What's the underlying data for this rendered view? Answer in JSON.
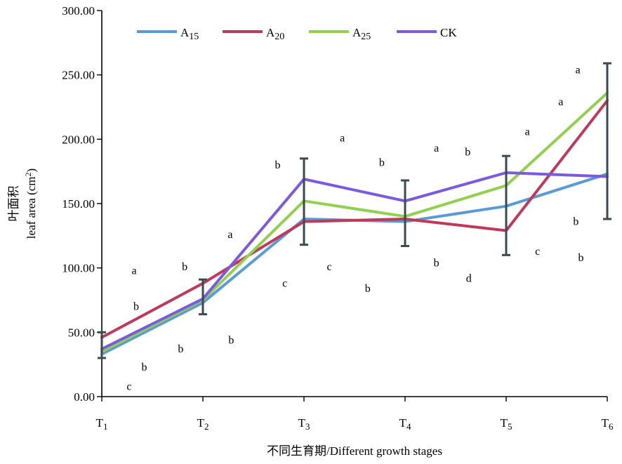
{
  "chart_data": {
    "type": "line",
    "xlabel": "不同生育期/Different growth stages",
    "ylabel_cn": "叶面积",
    "ylabel_en": "leaf area (cm",
    "ylabel_sup": "2",
    "ylabel_close": ")",
    "ylim": [
      0,
      300
    ],
    "yticks": [
      "0.00",
      "50.00",
      "100.00",
      "150.00",
      "200.00",
      "250.00",
      "300.00"
    ],
    "categories": [
      {
        "main": "T",
        "sub": "1"
      },
      {
        "main": "T",
        "sub": "2"
      },
      {
        "main": "T",
        "sub": "3"
      },
      {
        "main": "T",
        "sub": "4"
      },
      {
        "main": "T",
        "sub": "5"
      },
      {
        "main": "T",
        "sub": "6"
      }
    ],
    "legend_position": "top",
    "series": [
      {
        "name": "A",
        "name_sub": "15",
        "color": "#5b9bd5",
        "values": [
          33,
          73,
          138,
          136,
          148,
          173
        ]
      },
      {
        "name": "A",
        "name_sub": "20",
        "color": "#c0395a",
        "values": [
          46,
          88,
          136,
          138,
          129,
          230
        ]
      },
      {
        "name": "A",
        "name_sub": "25",
        "color": "#92d050",
        "values": [
          35,
          75,
          152,
          140,
          164,
          236
        ]
      },
      {
        "name": "CK",
        "name_sub": "",
        "color": "#7b5ae0",
        "values": [
          37,
          76,
          169,
          152,
          174,
          171
        ]
      }
    ],
    "error_bars": [
      {
        "category": 0,
        "low": 30,
        "high": 50
      },
      {
        "category": 1,
        "low": 64,
        "high": 91
      },
      {
        "category": 2,
        "low": 118,
        "high": 185
      },
      {
        "category": 3,
        "low": 117,
        "high": 168
      },
      {
        "category": 4,
        "low": 110,
        "high": 187
      },
      {
        "category": 5,
        "low": 138,
        "high": 259
      }
    ],
    "annotations": [
      {
        "text": "a",
        "x": 0.32,
        "y": 98
      },
      {
        "text": "b",
        "x": 0.34,
        "y": 70
      },
      {
        "text": "b",
        "x": 0.42,
        "y": 23
      },
      {
        "text": "c",
        "x": 0.27,
        "y": 8
      },
      {
        "text": "b",
        "x": 0.82,
        "y": 101
      },
      {
        "text": "b",
        "x": 0.78,
        "y": 37
      },
      {
        "text": "a",
        "x": 1.27,
        "y": 126
      },
      {
        "text": "b",
        "x": 1.28,
        "y": 44
      },
      {
        "text": "b",
        "x": 1.74,
        "y": 180
      },
      {
        "text": "a",
        "x": 2.38,
        "y": 201
      },
      {
        "text": "c",
        "x": 2.25,
        "y": 101
      },
      {
        "text": "c",
        "x": 1.81,
        "y": 88
      },
      {
        "text": "b",
        "x": 2.77,
        "y": 182
      },
      {
        "text": "b",
        "x": 2.63,
        "y": 84
      },
      {
        "text": "a",
        "x": 3.31,
        "y": 193
      },
      {
        "text": "b",
        "x": 3.31,
        "y": 104
      },
      {
        "text": "b",
        "x": 3.62,
        "y": 190
      },
      {
        "text": "d",
        "x": 3.63,
        "y": 92
      },
      {
        "text": "a",
        "x": 4.21,
        "y": 206
      },
      {
        "text": "c",
        "x": 4.31,
        "y": 113
      },
      {
        "text": "a",
        "x": 4.54,
        "y": 229
      },
      {
        "text": "a",
        "x": 4.71,
        "y": 254
      },
      {
        "text": "b",
        "x": 4.69,
        "y": 136
      },
      {
        "text": "b",
        "x": 4.74,
        "y": 108
      }
    ]
  }
}
